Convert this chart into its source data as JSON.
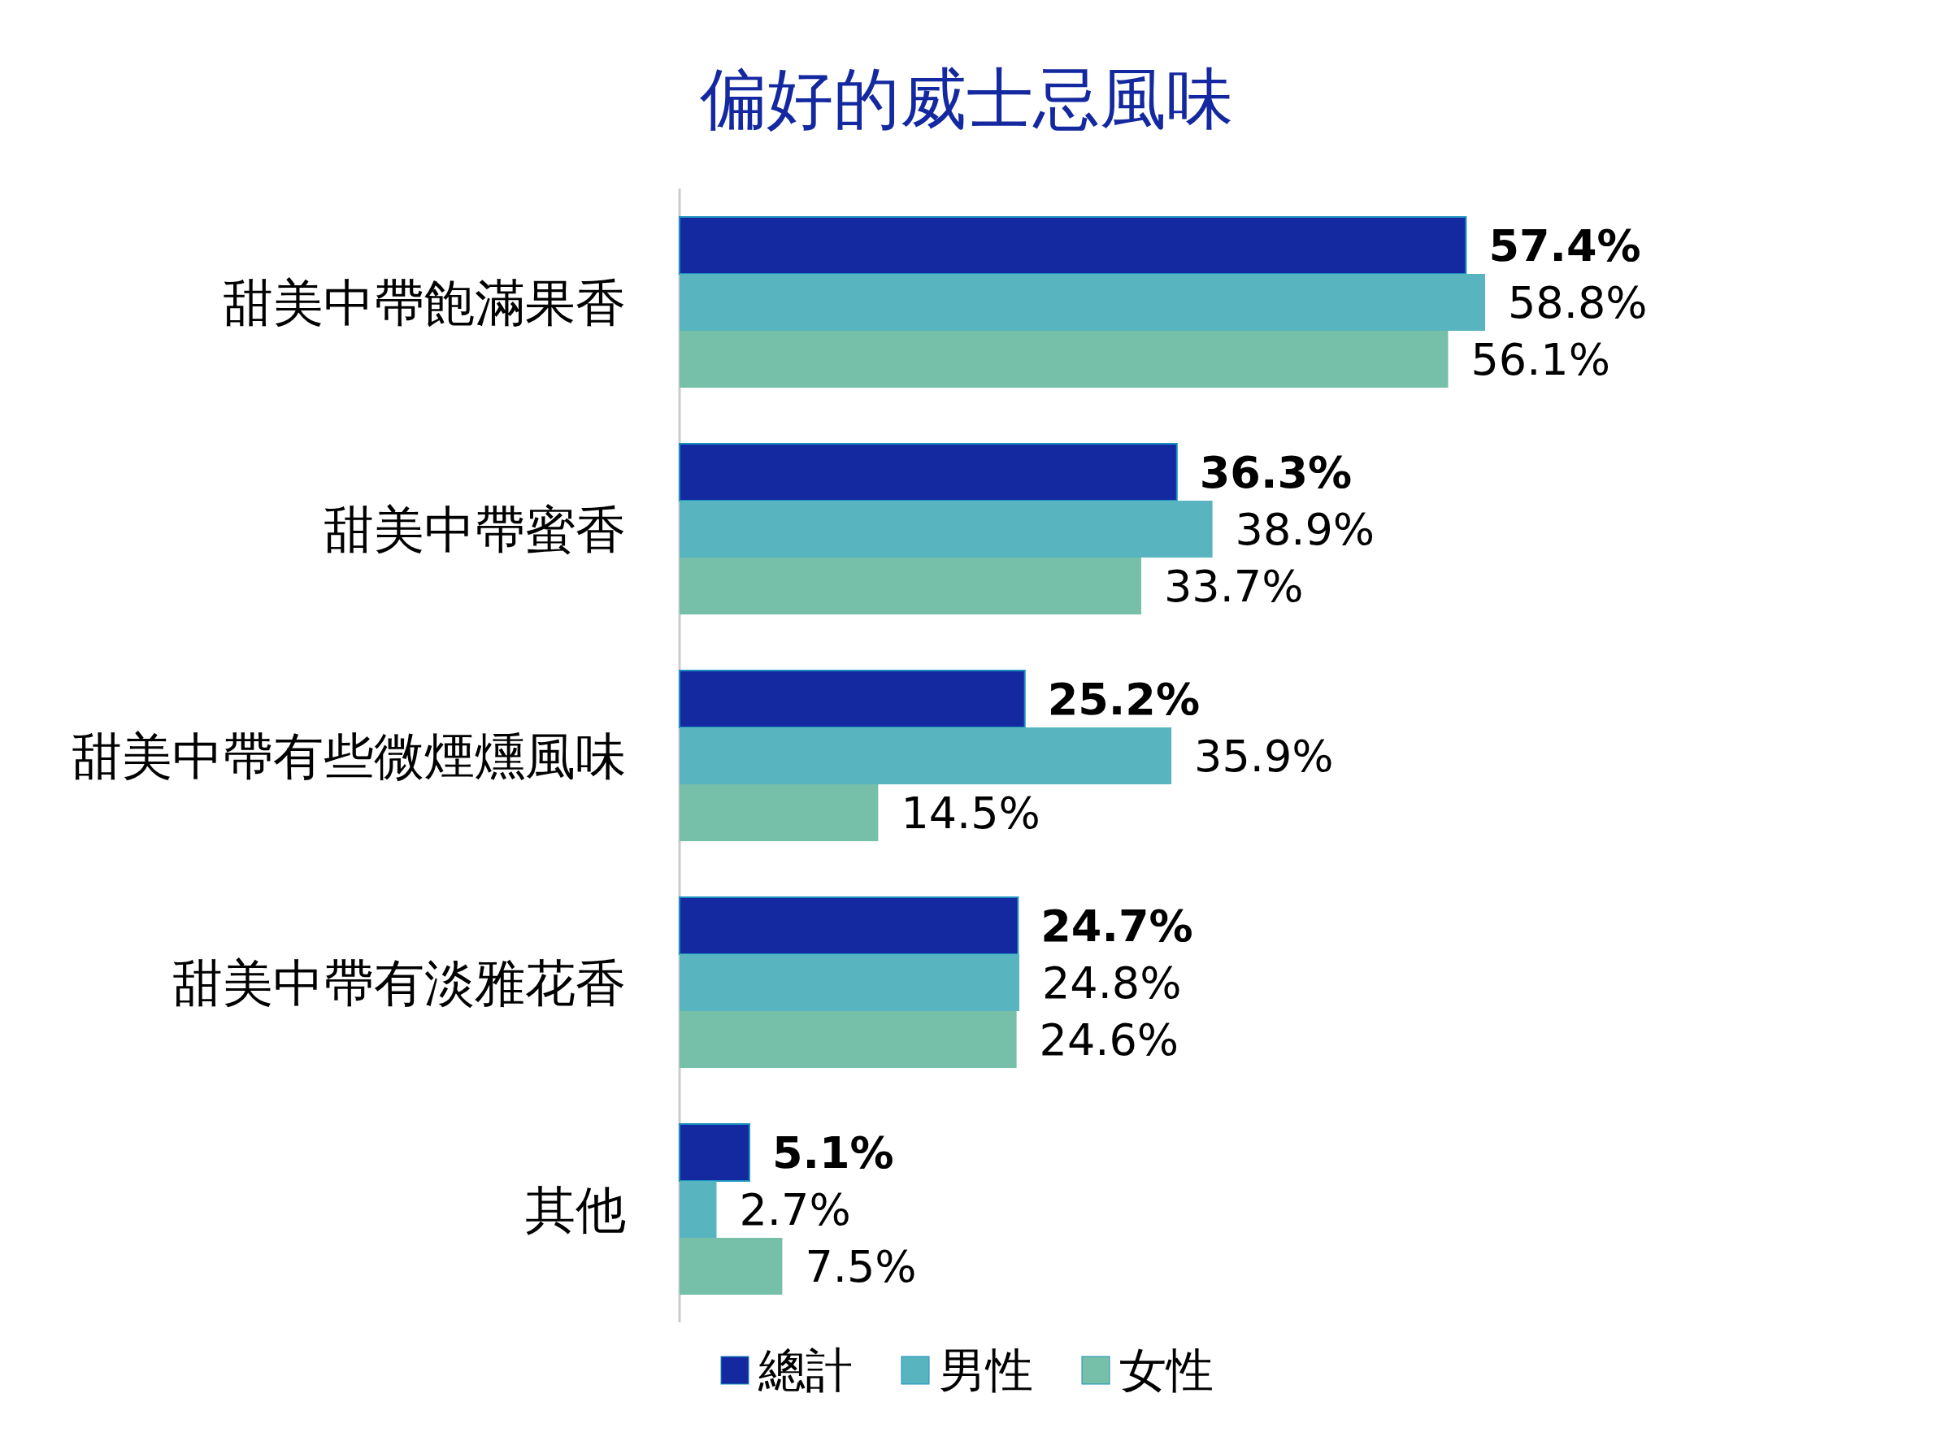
{
  "chart_data": {
    "type": "bar",
    "orientation": "horizontal",
    "title": "偏好的威士忌風味",
    "categories": [
      "甜美中帶飽滿果香",
      "甜美中帶蜜香",
      "甜美中帶有些微煙燻風味",
      "甜美中帶有淡雅花香",
      "其他"
    ],
    "series": [
      {
        "name": "總計",
        "color": "#1428a0",
        "values": [
          57.4,
          36.3,
          25.2,
          24.7,
          5.1
        ],
        "value_labels": [
          "57.4%",
          "36.3%",
          "25.2%",
          "24.7%",
          "5.1%"
        ]
      },
      {
        "name": "男性",
        "color": "#58b5c0",
        "values": [
          58.8,
          38.9,
          35.9,
          24.8,
          2.7
        ],
        "value_labels": [
          "58.8%",
          "38.9%",
          "35.9%",
          "24.8%",
          "2.7%"
        ]
      },
      {
        "name": "女性",
        "color": "#76bfa8",
        "values": [
          56.1,
          33.7,
          14.5,
          24.6,
          7.5
        ],
        "value_labels": [
          "56.1%",
          "33.7%",
          "14.5%",
          "24.6%",
          "7.5%"
        ]
      }
    ],
    "legend": "bottom"
  }
}
